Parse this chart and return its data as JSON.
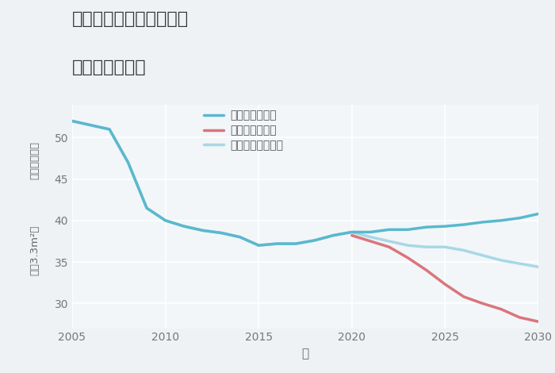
{
  "title_line1": "奈良県奈良市帝塚山西の",
  "title_line2": "土地の価格推移",
  "xlabel": "年",
  "ylabel_top": "単価（万円）",
  "ylabel_bottom": "坪（3.3m²）",
  "bg_color": "#eef2f5",
  "plot_bg_color": "#f2f6f9",
  "grid_color": "#ffffff",
  "xlim": [
    2005,
    2030
  ],
  "ylim": [
    27,
    54
  ],
  "yticks": [
    30,
    35,
    40,
    45,
    50
  ],
  "xticks": [
    2005,
    2010,
    2015,
    2020,
    2025,
    2030
  ],
  "good_scenario": {
    "label": "グッドシナリオ",
    "color": "#5ab8ce",
    "linewidth": 2.5,
    "x": [
      2005,
      2006,
      2007,
      2008,
      2009,
      2010,
      2011,
      2012,
      2013,
      2014,
      2015,
      2016,
      2017,
      2018,
      2019,
      2020,
      2021,
      2022,
      2023,
      2024,
      2025,
      2026,
      2027,
      2028,
      2029,
      2030
    ],
    "y": [
      52.0,
      51.5,
      51.0,
      47.0,
      41.5,
      40.0,
      39.3,
      38.8,
      38.5,
      38.0,
      37.0,
      37.2,
      37.2,
      37.6,
      38.2,
      38.6,
      38.6,
      38.9,
      38.9,
      39.2,
      39.3,
      39.5,
      39.8,
      40.0,
      40.3,
      40.8
    ]
  },
  "bad_scenario": {
    "label": "バッドシナリオ",
    "color": "#d9767c",
    "linewidth": 2.5,
    "x": [
      2020,
      2021,
      2022,
      2023,
      2024,
      2025,
      2026,
      2027,
      2028,
      2029,
      2030
    ],
    "y": [
      38.2,
      37.5,
      36.8,
      35.5,
      34.0,
      32.3,
      30.8,
      30.0,
      29.3,
      28.3,
      27.8
    ]
  },
  "normal_scenario": {
    "label": "ノーマルシナリオ",
    "color": "#a8d8e4",
    "linewidth": 2.5,
    "x": [
      2005,
      2006,
      2007,
      2008,
      2009,
      2010,
      2011,
      2012,
      2013,
      2014,
      2015,
      2016,
      2017,
      2018,
      2019,
      2020,
      2021,
      2022,
      2023,
      2024,
      2025,
      2026,
      2027,
      2028,
      2029,
      2030
    ],
    "y": [
      52.0,
      51.5,
      51.0,
      47.0,
      41.5,
      40.0,
      39.3,
      38.8,
      38.5,
      38.0,
      37.0,
      37.2,
      37.2,
      37.6,
      38.2,
      38.6,
      38.0,
      37.5,
      37.0,
      36.8,
      36.8,
      36.4,
      35.8,
      35.2,
      34.8,
      34.4
    ]
  }
}
